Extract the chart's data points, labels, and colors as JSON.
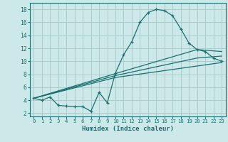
{
  "xlabel": "Humidex (Indice chaleur)",
  "bg_color": "#cce8e8",
  "grid_color": "#aacccc",
  "line_color": "#1a7070",
  "xlim": [
    -0.5,
    23.5
  ],
  "ylim": [
    1.5,
    19
  ],
  "xticks": [
    0,
    1,
    2,
    3,
    4,
    5,
    6,
    7,
    8,
    9,
    10,
    11,
    12,
    13,
    14,
    15,
    16,
    17,
    18,
    19,
    20,
    21,
    22,
    23
  ],
  "yticks": [
    2,
    4,
    6,
    8,
    10,
    12,
    14,
    16,
    18
  ],
  "series1_x": [
    0,
    1,
    2,
    3,
    4,
    5,
    6,
    7,
    8,
    9,
    10,
    11,
    12,
    13,
    14,
    15,
    16,
    17,
    18,
    19,
    20,
    21,
    22,
    23
  ],
  "series1_y": [
    4.3,
    4.0,
    4.5,
    3.2,
    3.1,
    3.0,
    3.0,
    2.3,
    5.2,
    3.6,
    8.2,
    11.0,
    13.0,
    16.0,
    17.5,
    18.0,
    17.8,
    17.0,
    15.0,
    12.8,
    11.8,
    11.5,
    10.5,
    10.0
  ],
  "series2_x": [
    0,
    10,
    20,
    23
  ],
  "series2_y": [
    4.3,
    8.1,
    11.8,
    11.5
  ],
  "series3_x": [
    0,
    10,
    20,
    23
  ],
  "series3_y": [
    4.3,
    7.8,
    10.5,
    10.8
  ],
  "series4_x": [
    0,
    10,
    23
  ],
  "series4_y": [
    4.3,
    7.5,
    9.8
  ]
}
